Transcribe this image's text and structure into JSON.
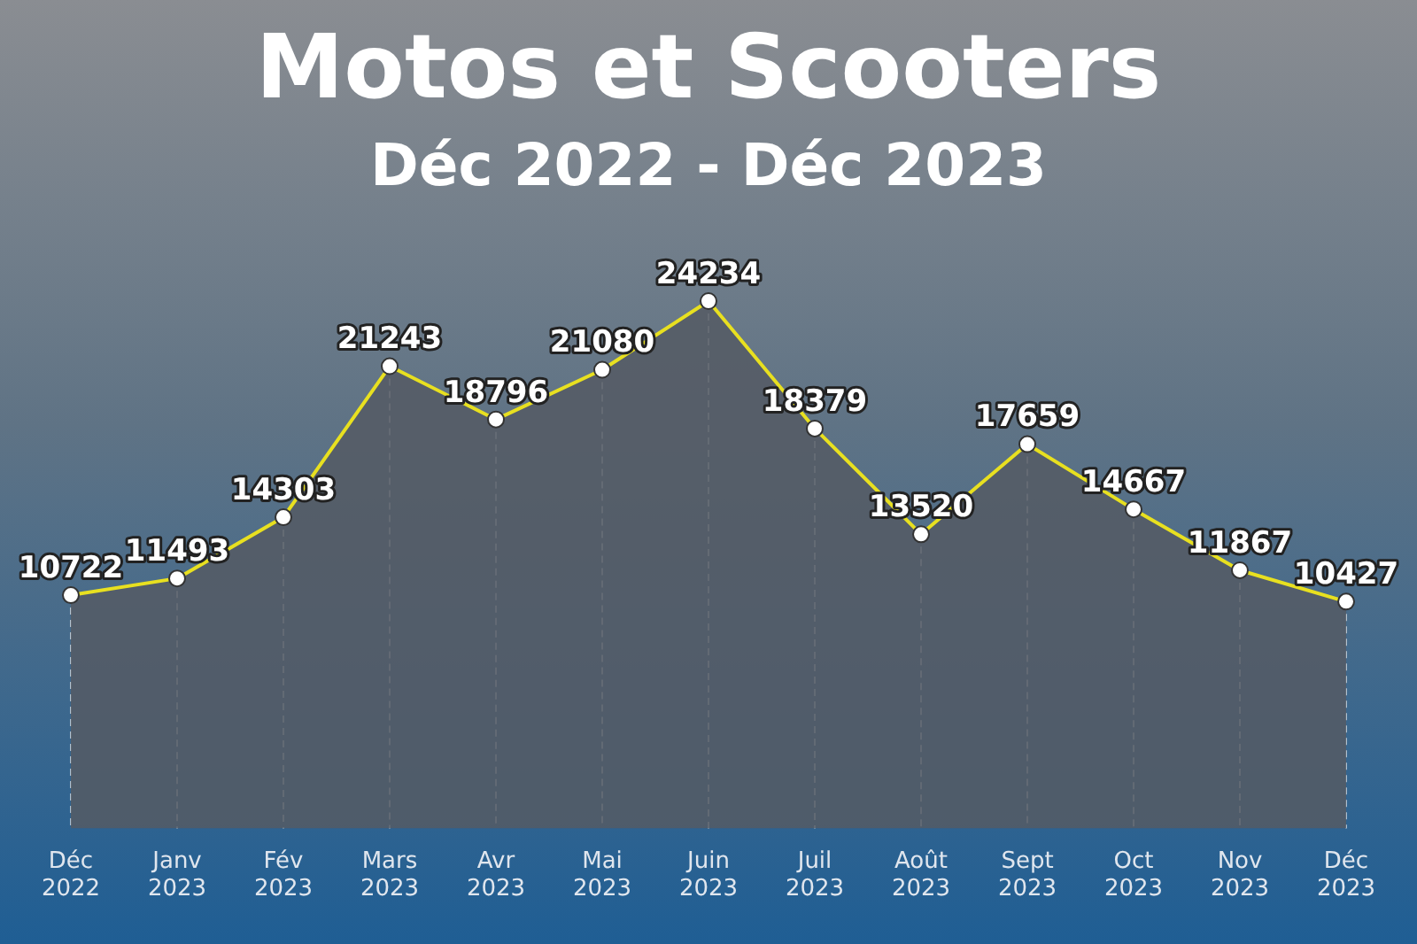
{
  "chart_data": {
    "type": "area",
    "title": "Motos et Scooters",
    "subtitle": "Déc 2022 - Déc 2023",
    "categories": [
      "Déc\n2022",
      "Janv\n2023",
      "Fév\n2023",
      "Mars\n2023",
      "Avr\n2023",
      "Mai\n2023",
      "Juin\n2023",
      "Juil\n2023",
      "Août\n2023",
      "Sept\n2023",
      "Oct\n2023",
      "Nov\n2023",
      "Déc\n2023"
    ],
    "series": [
      {
        "color": "#e8e020",
        "values": [
          10722,
          11493,
          14303,
          21243,
          18796,
          21080,
          24234,
          18379,
          13520,
          17659,
          14667,
          11867,
          10427
        ]
      }
    ],
    "data_labels": true,
    "marker": "circle",
    "grid": "x",
    "tick_labels": "x",
    "legend": false
  }
}
